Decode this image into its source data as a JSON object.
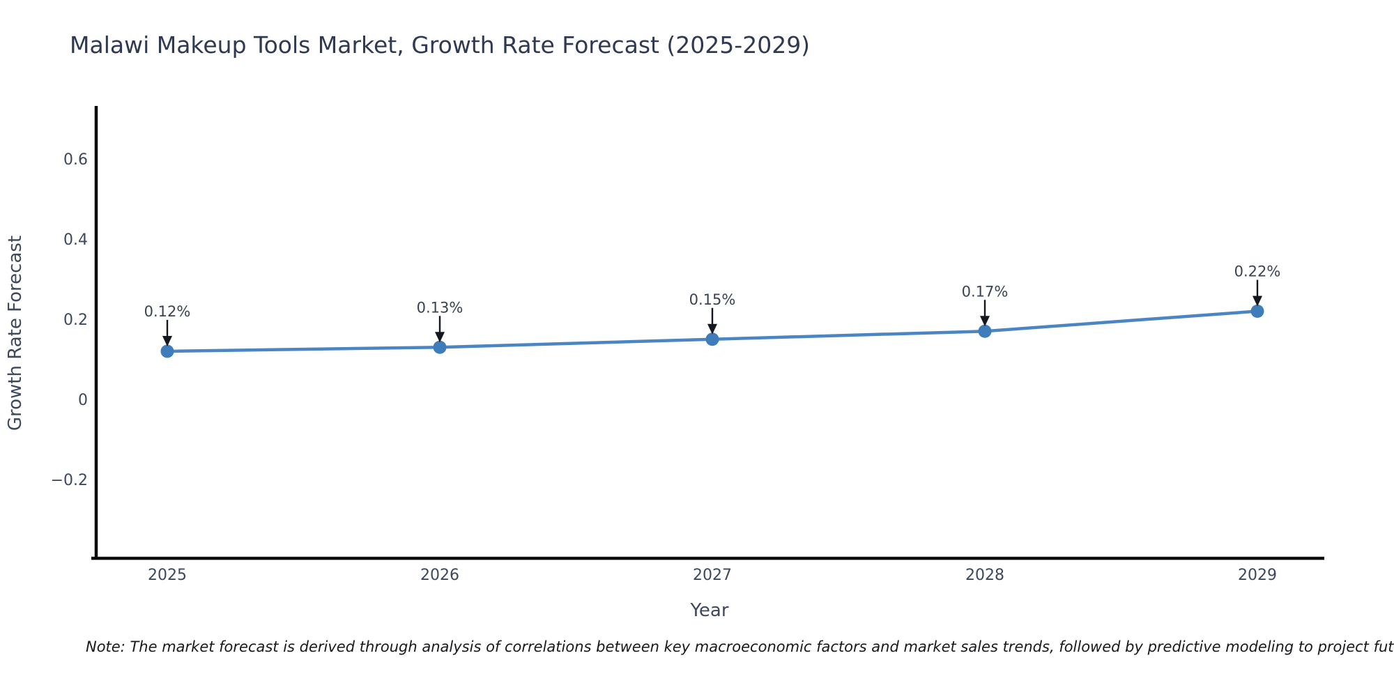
{
  "title": "Malawi Makeup Tools Market, Growth Rate Forecast (2025-2029)",
  "note": "Note: The market forecast is derived through analysis of correlations between key macroeconomic factors and market sales trends, followed by predictive modeling to project future sales.",
  "chart_data": {
    "type": "line",
    "x": [
      "2025",
      "2026",
      "2027",
      "2028",
      "2029"
    ],
    "values": [
      0.12,
      0.13,
      0.15,
      0.17,
      0.22
    ],
    "point_labels": [
      "0.12%",
      "0.13%",
      "0.15%",
      "0.17%",
      "0.22%"
    ],
    "title": "Malawi Makeup Tools Market, Growth Rate Forecast (2025-2029)",
    "xlabel": "Year",
    "ylabel": "Growth Rate Forecast",
    "ytick_values": [
      0.6,
      0.4,
      0.2,
      0,
      -0.2
    ],
    "ytick_labels": [
      "0.6",
      "0.4",
      "0.2",
      "0",
      "−0.2"
    ],
    "ylim": [
      -0.4,
      0.73
    ],
    "grid": false,
    "legend": "none",
    "line_color": "#4c86c2",
    "marker_color": "#3e7cba",
    "arrow_color": "#14181e",
    "spine_color": "#0c0c0c",
    "text_color": "#3c485c",
    "title_color": "#2f3a52"
  }
}
